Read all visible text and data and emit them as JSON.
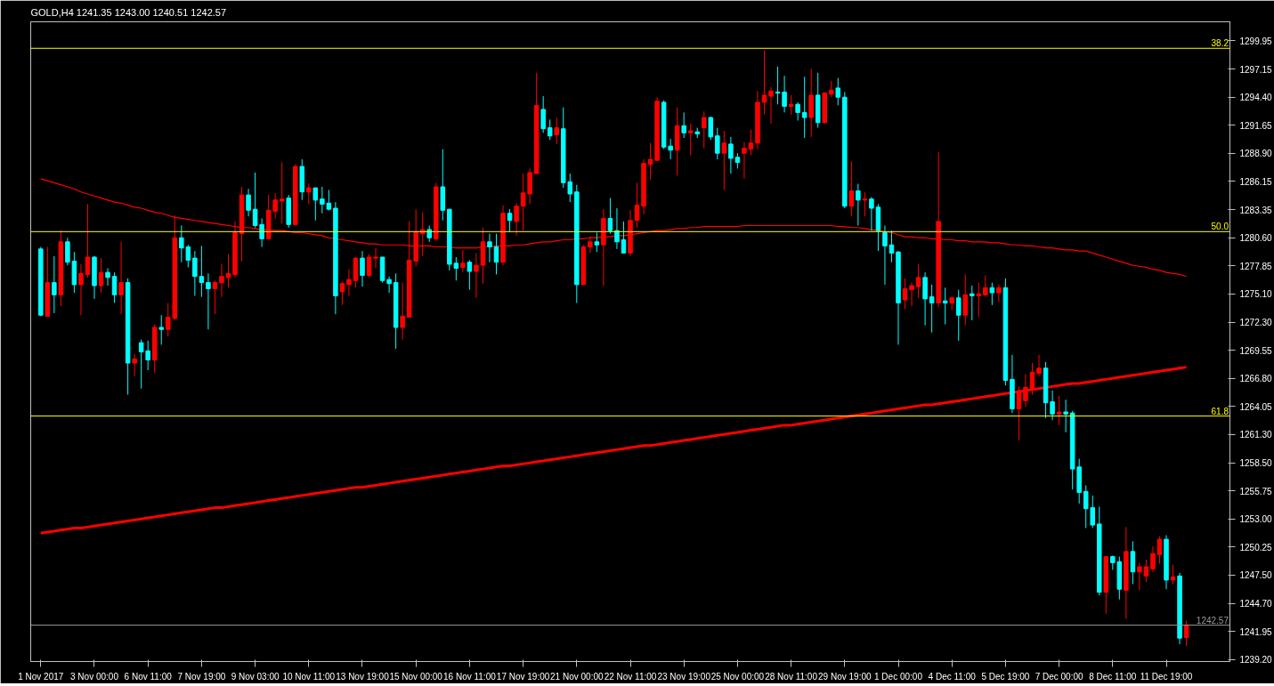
{
  "chart_data": {
    "type": "candlestick",
    "title": "GOLD,H4 1241.35 1243.00 1240.51 1242.57",
    "categories": [
      "1 Nov 2017",
      null,
      null,
      null,
      null,
      null,
      null,
      null,
      "3 Nov 00:00",
      null,
      null,
      null,
      null,
      null,
      null,
      null,
      "6 Nov 11:00",
      null,
      null,
      null,
      null,
      null,
      null,
      null,
      "7 Nov 19:00",
      null,
      null,
      null,
      null,
      null,
      null,
      null,
      "9 Nov 03:00",
      null,
      null,
      null,
      null,
      null,
      null,
      null,
      "10 Nov 11:00",
      null,
      null,
      null,
      null,
      null,
      null,
      null,
      "13 Nov 19:00",
      null,
      null,
      null,
      null,
      null,
      null,
      null,
      "15 Nov 00:00",
      null,
      null,
      null,
      null,
      null,
      null,
      null,
      "16 Nov 11:00",
      null,
      null,
      null,
      null,
      null,
      null,
      null,
      "17 Nov 19:00",
      null,
      null,
      null,
      null,
      null,
      null,
      null,
      "21 Nov 00:00",
      null,
      null,
      null,
      null,
      null,
      null,
      null,
      "22 Nov 11:00",
      null,
      null,
      null,
      null,
      null,
      null,
      null,
      "23 Nov 19:00",
      null,
      null,
      null,
      null,
      null,
      null,
      null,
      "25 Nov 00:00",
      null,
      null,
      null,
      null,
      null,
      null,
      null,
      "28 Nov 11:00",
      null,
      null,
      null,
      null,
      null,
      null,
      null,
      "29 Nov 19:00",
      null,
      null,
      null,
      null,
      null,
      null,
      null,
      "1 Dec 00:00",
      null,
      null,
      null,
      null,
      null,
      null,
      null,
      "4 Dec 11:00",
      null,
      null,
      null,
      null,
      null,
      null,
      null,
      "5 Dec 19:00",
      null,
      null,
      null,
      null,
      null,
      null,
      null,
      "7 Dec 00:00",
      null,
      null,
      null,
      null,
      null,
      null,
      null,
      "8 Dec 11:00",
      null,
      null,
      null,
      null,
      null,
      null,
      null,
      "11 Dec 19:00",
      null,
      null,
      null
    ],
    "ohlc": [
      [
        1279.5,
        1279.7,
        1272.9,
        1273.0
      ],
      [
        1272.9,
        1279.7,
        1272.9,
        1276.2
      ],
      [
        1276.2,
        1278.8,
        1273.2,
        1275.0
      ],
      [
        1275.0,
        1281.3,
        1273.9,
        1280.2
      ],
      [
        1280.2,
        1280.6,
        1277.9,
        1278.2
      ],
      [
        1278.3,
        1279.2,
        1275.2,
        1276.0
      ],
      [
        1276.0,
        1278.0,
        1273.0,
        1277.1
      ],
      [
        1277.0,
        1283.9,
        1276.7,
        1278.7
      ],
      [
        1278.7,
        1278.8,
        1274.6,
        1275.9
      ],
      [
        1275.9,
        1278.6,
        1275.2,
        1277.2
      ],
      [
        1277.2,
        1277.6,
        1275.9,
        1276.7
      ],
      [
        1276.8,
        1277.2,
        1274.2,
        1275.0
      ],
      [
        1275.0,
        1280.2,
        1273.1,
        1276.2
      ],
      [
        1276.2,
        1276.6,
        1265.2,
        1268.3
      ],
      [
        1268.3,
        1269.2,
        1267.0,
        1268.7
      ],
      [
        1270.3,
        1270.6,
        1265.8,
        1269.4
      ],
      [
        1269.5,
        1270.5,
        1267.6,
        1268.6
      ],
      [
        1268.6,
        1272.1,
        1267.3,
        1271.8
      ],
      [
        1271.8,
        1273.0,
        1270.1,
        1271.6
      ],
      [
        1271.6,
        1274.2,
        1270.9,
        1272.8
      ],
      [
        1272.7,
        1282.8,
        1272.5,
        1280.6
      ],
      [
        1280.6,
        1281.8,
        1278.2,
        1279.6
      ],
      [
        1279.7,
        1279.9,
        1277.7,
        1278.4
      ],
      [
        1278.6,
        1279.3,
        1274.9,
        1276.8
      ],
      [
        1276.8,
        1279.8,
        1274.8,
        1276.2
      ],
      [
        1276.2,
        1277.1,
        1271.6,
        1275.6
      ],
      [
        1275.6,
        1276.4,
        1273.1,
        1276.2
      ],
      [
        1276.2,
        1278.0,
        1274.8,
        1276.8
      ],
      [
        1276.7,
        1279.0,
        1275.7,
        1277.1
      ],
      [
        1277.0,
        1282.2,
        1276.7,
        1281.1
      ],
      [
        1281.0,
        1285.6,
        1278.3,
        1284.8
      ],
      [
        1284.8,
        1285.4,
        1282.7,
        1283.3
      ],
      [
        1283.4,
        1287.0,
        1281.6,
        1281.8
      ],
      [
        1281.9,
        1282.5,
        1279.7,
        1280.5
      ],
      [
        1280.5,
        1284.8,
        1280.5,
        1283.3
      ],
      [
        1283.2,
        1285.0,
        1282.5,
        1284.3
      ],
      [
        1284.2,
        1288.0,
        1282.0,
        1284.4
      ],
      [
        1284.5,
        1284.8,
        1281.6,
        1281.9
      ],
      [
        1281.9,
        1287.8,
        1281.8,
        1287.6
      ],
      [
        1287.6,
        1288.3,
        1284.3,
        1285.1
      ],
      [
        1285.1,
        1285.9,
        1283.9,
        1285.5
      ],
      [
        1285.5,
        1285.5,
        1282.3,
        1284.3
      ],
      [
        1284.4,
        1285.6,
        1283.0,
        1283.9
      ],
      [
        1284.0,
        1285.3,
        1283.3,
        1283.4
      ],
      [
        1283.5,
        1284.1,
        1273.1,
        1274.9
      ],
      [
        1275.3,
        1276.3,
        1274.0,
        1276.1
      ],
      [
        1276.0,
        1277.5,
        1274.9,
        1276.5
      ],
      [
        1276.4,
        1278.7,
        1275.7,
        1278.6
      ],
      [
        1278.6,
        1279.3,
        1275.8,
        1276.9
      ],
      [
        1276.9,
        1279.0,
        1276.7,
        1278.7
      ],
      [
        1278.6,
        1279.6,
        1277.6,
        1278.7
      ],
      [
        1278.7,
        1278.7,
        1276.2,
        1276.4
      ],
      [
        1276.5,
        1276.8,
        1275.2,
        1276.1
      ],
      [
        1276.2,
        1277.1,
        1269.7,
        1271.8
      ],
      [
        1271.8,
        1276.2,
        1270.6,
        1272.9
      ],
      [
        1272.8,
        1282.2,
        1272.8,
        1278.4
      ],
      [
        1278.3,
        1283.4,
        1277.8,
        1281.2
      ],
      [
        1281.0,
        1283.1,
        1278.8,
        1281.4
      ],
      [
        1281.4,
        1281.8,
        1280.2,
        1280.6
      ],
      [
        1280.5,
        1286.0,
        1280.3,
        1285.6
      ],
      [
        1285.6,
        1289.3,
        1282.3,
        1283.3
      ],
      [
        1283.4,
        1283.4,
        1277.4,
        1278.0
      ],
      [
        1278.1,
        1278.7,
        1276.4,
        1277.6
      ],
      [
        1277.7,
        1279.4,
        1277.2,
        1278.1
      ],
      [
        1278.2,
        1278.4,
        1275.5,
        1277.3
      ],
      [
        1277.3,
        1279.1,
        1274.7,
        1277.9
      ],
      [
        1277.9,
        1281.6,
        1276.1,
        1280.2
      ],
      [
        1280.2,
        1281.0,
        1278.2,
        1279.7
      ],
      [
        1279.7,
        1281.0,
        1277.0,
        1278.2
      ],
      [
        1278.2,
        1283.8,
        1277.9,
        1283.0
      ],
      [
        1283.0,
        1283.4,
        1281.2,
        1282.3
      ],
      [
        1282.2,
        1284.0,
        1280.8,
        1283.7
      ],
      [
        1283.7,
        1286.9,
        1281.3,
        1285.0
      ],
      [
        1284.9,
        1287.4,
        1283.9,
        1287.0
      ],
      [
        1286.9,
        1296.8,
        1286.9,
        1293.6
      ],
      [
        1293.2,
        1294.5,
        1290.9,
        1291.3
      ],
      [
        1291.4,
        1292.2,
        1290.2,
        1290.6
      ],
      [
        1290.7,
        1292.4,
        1289.8,
        1291.4
      ],
      [
        1291.3,
        1293.4,
        1285.5,
        1286.0
      ],
      [
        1286.1,
        1286.9,
        1284.1,
        1284.9
      ],
      [
        1285.1,
        1285.8,
        1274.2,
        1276.0
      ],
      [
        1276.0,
        1279.9,
        1276.0,
        1279.7
      ],
      [
        1279.7,
        1280.7,
        1279.1,
        1280.2
      ],
      [
        1280.2,
        1281.1,
        1279.2,
        1279.9
      ],
      [
        1279.9,
        1283.4,
        1275.9,
        1282.5
      ],
      [
        1282.5,
        1284.5,
        1281.0,
        1281.3
      ],
      [
        1281.3,
        1283.5,
        1279.5,
        1280.2
      ],
      [
        1280.4,
        1282.2,
        1279.1,
        1279.1
      ],
      [
        1279.1,
        1283.3,
        1278.8,
        1282.3
      ],
      [
        1282.3,
        1286.0,
        1281.6,
        1283.8
      ],
      [
        1283.7,
        1288.3,
        1282.9,
        1287.9
      ],
      [
        1287.8,
        1289.9,
        1286.3,
        1288.3
      ],
      [
        1288.2,
        1294.4,
        1288.2,
        1294.0
      ],
      [
        1293.9,
        1294.1,
        1289.3,
        1289.5
      ],
      [
        1289.6,
        1290.3,
        1288.3,
        1289.2
      ],
      [
        1289.2,
        1293.4,
        1286.7,
        1291.6
      ],
      [
        1291.6,
        1292.9,
        1290.4,
        1290.9
      ],
      [
        1290.9,
        1291.8,
        1288.7,
        1291.1
      ],
      [
        1291.0,
        1291.4,
        1290.4,
        1290.8
      ],
      [
        1291.4,
        1293.0,
        1289.4,
        1292.4
      ],
      [
        1292.4,
        1292.5,
        1290.2,
        1290.5
      ],
      [
        1290.6,
        1291.4,
        1288.3,
        1288.9
      ],
      [
        1288.9,
        1291.1,
        1285.3,
        1289.9
      ],
      [
        1289.8,
        1290.5,
        1286.9,
        1288.4
      ],
      [
        1288.5,
        1288.9,
        1287.4,
        1288.0
      ],
      [
        1288.9,
        1290.0,
        1286.4,
        1289.4
      ],
      [
        1289.3,
        1291.2,
        1288.7,
        1289.9
      ],
      [
        1289.9,
        1295.0,
        1289.3,
        1293.9
      ],
      [
        1293.9,
        1299.0,
        1292.7,
        1294.6
      ],
      [
        1294.5,
        1295.4,
        1291.8,
        1295.0
      ],
      [
        1294.9,
        1297.4,
        1293.7,
        1294.8
      ],
      [
        1294.9,
        1296.5,
        1292.9,
        1293.5
      ],
      [
        1293.5,
        1294.6,
        1292.7,
        1293.7
      ],
      [
        1293.7,
        1293.9,
        1292.1,
        1292.9
      ],
      [
        1292.9,
        1296.4,
        1290.4,
        1292.4
      ],
      [
        1292.4,
        1297.2,
        1290.5,
        1294.6
      ],
      [
        1294.6,
        1296.8,
        1291.4,
        1291.9
      ],
      [
        1291.9,
        1294.9,
        1291.8,
        1294.8
      ],
      [
        1294.7,
        1296.0,
        1294.4,
        1295.1
      ],
      [
        1295.3,
        1296.3,
        1293.6,
        1294.4
      ],
      [
        1294.4,
        1294.9,
        1283.5,
        1283.7
      ],
      [
        1283.7,
        1288.1,
        1282.7,
        1285.2
      ],
      [
        1285.2,
        1285.9,
        1281.8,
        1284.3
      ],
      [
        1284.3,
        1285.1,
        1282.7,
        1284.4
      ],
      [
        1284.4,
        1284.6,
        1281.3,
        1283.5
      ],
      [
        1283.6,
        1283.9,
        1279.3,
        1281.3
      ],
      [
        1281.1,
        1281.8,
        1276.0,
        1279.8
      ],
      [
        1279.9,
        1281.3,
        1278.2,
        1279.1
      ],
      [
        1279.2,
        1279.3,
        1270.1,
        1274.2
      ],
      [
        1274.5,
        1276.6,
        1273.6,
        1275.6
      ],
      [
        1275.5,
        1276.2,
        1273.9,
        1275.9
      ],
      [
        1275.8,
        1278.0,
        1274.7,
        1276.7
      ],
      [
        1276.7,
        1277.2,
        1272.0,
        1274.6
      ],
      [
        1274.8,
        1276.0,
        1271.3,
        1274.2
      ],
      [
        1274.2,
        1289.0,
        1273.8,
        1282.2
      ],
      [
        1274.4,
        1275.7,
        1272.1,
        1274.2
      ],
      [
        1274.2,
        1274.8,
        1273.5,
        1274.7
      ],
      [
        1274.7,
        1275.5,
        1270.5,
        1273.0
      ],
      [
        1273.0,
        1277.0,
        1272.0,
        1275.0
      ],
      [
        1275.1,
        1275.9,
        1272.5,
        1274.9
      ],
      [
        1274.9,
        1276.2,
        1272.8,
        1275.1
      ],
      [
        1275.0,
        1276.9,
        1274.8,
        1275.7
      ],
      [
        1275.7,
        1276.2,
        1274.0,
        1275.2
      ],
      [
        1275.2,
        1276.0,
        1274.3,
        1275.7
      ],
      [
        1275.7,
        1276.6,
        1266.1,
        1266.6
      ],
      [
        1266.7,
        1269.1,
        1263.4,
        1263.8
      ],
      [
        1263.8,
        1266.0,
        1260.7,
        1265.5
      ],
      [
        1264.6,
        1267.2,
        1264.0,
        1265.9
      ],
      [
        1265.8,
        1268.3,
        1265.2,
        1267.4
      ],
      [
        1267.3,
        1269.1,
        1267.0,
        1267.8
      ],
      [
        1267.8,
        1268.4,
        1262.9,
        1264.4
      ],
      [
        1264.5,
        1265.6,
        1262.7,
        1263.3
      ],
      [
        1263.3,
        1265.1,
        1262.2,
        1263.5
      ],
      [
        1263.5,
        1264.7,
        1261.5,
        1263.3
      ],
      [
        1263.4,
        1263.6,
        1255.9,
        1257.9
      ],
      [
        1258.1,
        1258.9,
        1254.5,
        1255.6
      ],
      [
        1255.7,
        1256.3,
        1252.1,
        1254.0
      ],
      [
        1254.1,
        1255.3,
        1252.1,
        1252.4
      ],
      [
        1252.5,
        1254.2,
        1245.5,
        1245.8
      ],
      [
        1245.8,
        1249.3,
        1243.7,
        1249.3
      ],
      [
        1249.3,
        1249.4,
        1248.0,
        1248.7
      ],
      [
        1248.8,
        1249.3,
        1245.1,
        1246.1
      ],
      [
        1246.0,
        1252.2,
        1243.2,
        1249.8
      ],
      [
        1249.8,
        1250.8,
        1246.6,
        1247.8
      ],
      [
        1247.8,
        1248.7,
        1246.0,
        1248.3
      ],
      [
        1247.4,
        1249.0,
        1246.8,
        1248.3
      ],
      [
        1248.1,
        1250.3,
        1247.8,
        1249.6
      ],
      [
        1249.5,
        1251.3,
        1248.6,
        1251.0
      ],
      [
        1251.0,
        1251.4,
        1246.1,
        1247.0
      ],
      [
        1247.0,
        1248.5,
        1246.6,
        1247.3
      ],
      [
        1247.4,
        1247.7,
        1240.7,
        1241.3
      ],
      [
        1241.35,
        1243.0,
        1240.51,
        1242.57
      ]
    ],
    "colors": [
      "#00ffff",
      "#ff0000",
      "#00ffff",
      "#ff0000",
      "#00ffff",
      "#00ffff",
      "#ff0000",
      "#ff0000",
      "#00ffff",
      "#ff0000",
      "#00ffff",
      "#00ffff",
      "#ff0000",
      "#00ffff",
      "#ff0000",
      "#00ffff",
      "#00ffff",
      "#ff0000",
      "#00ffff",
      "#ff0000",
      "#ff0000",
      "#00ffff",
      "#00ffff",
      "#00ffff",
      "#00ffff",
      "#00ffff",
      "#ff0000",
      "#ff0000",
      "#ff0000",
      "#ff0000",
      "#ff0000",
      "#00ffff",
      "#00ffff",
      "#00ffff",
      "#ff0000",
      "#ff0000",
      "#ff0000",
      "#00ffff",
      "#ff0000",
      "#00ffff",
      "#ff0000",
      "#00ffff",
      "#00ffff",
      "#00ffff",
      "#00ffff",
      "#ff0000",
      "#ff0000",
      "#ff0000",
      "#00ffff",
      "#ff0000",
      "#ff0000",
      "#00ffff",
      "#00ffff",
      "#00ffff",
      "#ff0000",
      "#ff0000",
      "#ff0000",
      "#ff0000",
      "#00ffff",
      "#ff0000",
      "#00ffff",
      "#00ffff",
      "#00ffff",
      "#ff0000",
      "#00ffff",
      "#ff0000",
      "#ff0000",
      "#00ffff",
      "#00ffff",
      "#ff0000",
      "#00ffff",
      "#ff0000",
      "#ff0000",
      "#ff0000",
      "#ff0000",
      "#00ffff",
      "#00ffff",
      "#ff0000",
      "#00ffff",
      "#00ffff",
      "#00ffff",
      "#ff0000",
      "#ff0000",
      "#00ffff",
      "#ff0000",
      "#00ffff",
      "#00ffff",
      "#00ffff",
      "#ff0000",
      "#ff0000",
      "#ff0000",
      "#ff0000",
      "#ff0000",
      "#00ffff",
      "#00ffff",
      "#ff0000",
      "#00ffff",
      "#ff0000",
      "#00ffff",
      "#ff0000",
      "#00ffff",
      "#00ffff",
      "#ff0000",
      "#00ffff",
      "#00ffff",
      "#ff0000",
      "#ff0000",
      "#ff0000",
      "#ff0000",
      "#ff0000",
      "#00ffff",
      "#00ffff",
      "#ff0000",
      "#00ffff",
      "#00ffff",
      "#ff0000",
      "#00ffff",
      "#ff0000",
      "#ff0000",
      "#00ffff",
      "#00ffff",
      "#ff0000",
      "#00ffff",
      "#ff0000",
      "#00ffff",
      "#00ffff",
      "#00ffff",
      "#00ffff",
      "#00ffff",
      "#ff0000",
      "#ff0000",
      "#ff0000",
      "#00ffff",
      "#00ffff",
      "#ff0000",
      "#00ffff",
      "#ff0000",
      "#00ffff",
      "#ff0000",
      "#00ffff",
      "#ff0000",
      "#ff0000",
      "#00ffff",
      "#ff0000",
      "#00ffff",
      "#00ffff",
      "#ff0000",
      "#ff0000",
      "#ff0000",
      "#ff0000",
      "#00ffff",
      "#00ffff",
      "#ff0000",
      "#00ffff",
      "#00ffff",
      "#00ffff",
      "#00ffff",
      "#00ffff",
      "#00ffff",
      "#ff0000",
      "#00ffff",
      "#00ffff",
      "#ff0000",
      "#00ffff",
      "#ff0000",
      "#ff0000",
      "#ff0000",
      "#ff0000",
      "#00ffff",
      "#ff0000",
      "#00ffff",
      "#ff0000"
    ],
    "series": [
      {
        "type": "line",
        "color": "#ff0000",
        "values": [
          1286.4,
          1286.2,
          1286.0,
          1285.8,
          1285.6,
          1285.4,
          1285.1,
          1284.9,
          1284.7,
          1284.5,
          1284.3,
          1284.1,
          1284.0,
          1283.8,
          1283.6,
          1283.5,
          1283.3,
          1283.1,
          1283.0,
          1282.8,
          1282.6,
          1282.5,
          1282.4,
          1282.3,
          1282.2,
          1282.1,
          1282.0,
          1281.9,
          1281.8,
          1281.7,
          1281.6,
          1281.6,
          1281.5,
          1281.4,
          1281.4,
          1281.3,
          1281.3,
          1281.2,
          1281.1,
          1281.1,
          1281.0,
          1280.9,
          1280.8,
          1280.6,
          1280.5,
          1280.4,
          1280.3,
          1280.2,
          1280.1,
          1280.0,
          1280.0,
          1279.9,
          1279.9,
          1279.9,
          1279.9,
          1279.8,
          1279.8,
          1279.8,
          1279.8,
          1279.7,
          1279.7,
          1279.7,
          1279.6,
          1279.6,
          1279.6,
          1279.6,
          1279.7,
          1279.7,
          1279.8,
          1279.8,
          1279.8,
          1279.9,
          1279.9,
          1280.0,
          1280.1,
          1280.2,
          1280.2,
          1280.3,
          1280.4,
          1280.4,
          1280.5,
          1280.5,
          1280.6,
          1280.6,
          1280.7,
          1280.7,
          1280.8,
          1280.8,
          1280.9,
          1281.0,
          1281.1,
          1281.2,
          1281.3,
          1281.3,
          1281.4,
          1281.5,
          1281.5,
          1281.6,
          1281.6,
          1281.7,
          1281.7,
          1281.7,
          1281.7,
          1281.7,
          1281.7,
          1281.8,
          1281.8,
          1281.8,
          1281.8,
          1281.8,
          1281.8,
          1281.8,
          1281.8,
          1281.8,
          1281.8,
          1281.8,
          1281.8,
          1281.8,
          1281.8,
          1281.7,
          1281.7,
          1281.6,
          1281.6,
          1281.5,
          1281.4,
          1281.3,
          1281.2,
          1281.1,
          1280.9,
          1280.7,
          1280.7,
          1280.6,
          1280.6,
          1280.5,
          1280.5,
          1280.4,
          1280.4,
          1280.3,
          1280.3,
          1280.2,
          1280.2,
          1280.2,
          1280.1,
          1280.1,
          1280.0,
          1279.9,
          1279.9,
          1279.8,
          1279.8,
          1279.7,
          1279.6,
          1279.6,
          1279.5,
          1279.4,
          1279.4,
          1279.3,
          1279.3,
          1279.1,
          1278.9,
          1278.7,
          1278.5,
          1278.3,
          1278.1,
          1277.9,
          1277.8,
          1277.7,
          1277.5,
          1277.4,
          1277.2,
          1277.1,
          1277.0,
          1276.8
        ]
      },
      {
        "type": "line",
        "color": "#ff0000",
        "values": [
          1251.6,
          1251.7,
          1251.8,
          1251.9,
          1252.0,
          1252.1,
          1252.1,
          1252.2,
          1252.3,
          1252.4,
          1252.5,
          1252.6,
          1252.7,
          1252.8,
          1252.9,
          1253.0,
          1253.1,
          1253.2,
          1253.3,
          1253.4,
          1253.5,
          1253.6,
          1253.7,
          1253.8,
          1253.9,
          1254.0,
          1254.1,
          1254.1,
          1254.2,
          1254.3,
          1254.4,
          1254.5,
          1254.6,
          1254.7,
          1254.8,
          1254.9,
          1255.0,
          1255.1,
          1255.2,
          1255.3,
          1255.4,
          1255.5,
          1255.6,
          1255.7,
          1255.8,
          1255.9,
          1256.0,
          1256.1,
          1256.1,
          1256.2,
          1256.3,
          1256.4,
          1256.5,
          1256.6,
          1256.7,
          1256.8,
          1256.9,
          1257.0,
          1257.1,
          1257.2,
          1257.3,
          1257.4,
          1257.5,
          1257.6,
          1257.7,
          1257.8,
          1257.9,
          1258.0,
          1258.1,
          1258.2,
          1258.2,
          1258.3,
          1258.4,
          1258.5,
          1258.6,
          1258.7,
          1258.8,
          1258.9,
          1259.0,
          1259.1,
          1259.2,
          1259.3,
          1259.4,
          1259.5,
          1259.6,
          1259.7,
          1259.8,
          1259.9,
          1260.0,
          1260.1,
          1260.2,
          1260.2,
          1260.3,
          1260.4,
          1260.5,
          1260.6,
          1260.7,
          1260.8,
          1260.9,
          1261.0,
          1261.1,
          1261.2,
          1261.3,
          1261.4,
          1261.5,
          1261.6,
          1261.7,
          1261.8,
          1261.9,
          1262.0,
          1262.1,
          1262.2,
          1262.2,
          1262.3,
          1262.4,
          1262.5,
          1262.6,
          1262.7,
          1262.8,
          1262.9,
          1263.0,
          1263.1,
          1263.2,
          1263.3,
          1263.4,
          1263.5,
          1263.6,
          1263.7,
          1263.8,
          1263.9,
          1264.0,
          1264.1,
          1264.2,
          1264.2,
          1264.3,
          1264.4,
          1264.5,
          1264.6,
          1264.7,
          1264.8,
          1264.9,
          1265.0,
          1265.1,
          1265.2,
          1265.3,
          1265.4,
          1265.5,
          1265.6,
          1265.7,
          1265.8,
          1265.9,
          1266.0,
          1266.1,
          1266.2,
          1266.3,
          1266.3,
          1266.4,
          1266.5,
          1266.6,
          1266.7,
          1266.8,
          1266.9,
          1267.0,
          1267.1,
          1267.2,
          1267.3,
          1267.4,
          1267.5,
          1267.6,
          1267.7,
          1267.8,
          1267.9
        ]
      }
    ],
    "ylim": [
      1239.0,
      1301.8
    ],
    "yticks": [
      {
        "value": 1239.2,
        "label": "1239.20"
      },
      1241.95,
      {
        "value": 1244.7,
        "label": "1244.70"
      },
      {
        "value": 1247.5,
        "label": "1247.50"
      },
      1250.25,
      {
        "value": 1253.0,
        "label": "1253.00"
      },
      1255.75,
      {
        "value": 1258.5,
        "label": "1258.50"
      },
      {
        "value": 1261.3,
        "label": "1261.30"
      },
      1264.05,
      {
        "value": 1266.8,
        "label": "1266.80"
      },
      1269.55,
      {
        "value": 1272.3,
        "label": "1272.30"
      },
      {
        "value": 1275.1,
        "label": "1275.10"
      },
      1277.85,
      {
        "value": 1280.6,
        "label": "1280.60"
      },
      1283.35,
      1286.15,
      {
        "value": 1288.9,
        "label": "1288.90"
      },
      1291.65,
      {
        "value": 1294.4,
        "label": "1294.40"
      },
      1297.15,
      1299.95
    ],
    "ref_lines": [
      {
        "axis": "y",
        "value": 1299.2,
        "color": "#ffff00"
      },
      {
        "axis": "y",
        "value": 1281.2,
        "color": "#ffff00"
      },
      {
        "axis": "y",
        "value": 1263.1,
        "color": "#ffff00"
      },
      {
        "axis": "y",
        "value": 1242.57,
        "label": "1242.57",
        "color": "#9a9a9a"
      }
    ],
    "annotations": [
      {
        "text": "38.2",
        "y": 1299.2
      },
      {
        "text": "50.0",
        "y": 1281.2
      },
      {
        "text": "61.8",
        "y": 1263.1
      }
    ]
  }
}
